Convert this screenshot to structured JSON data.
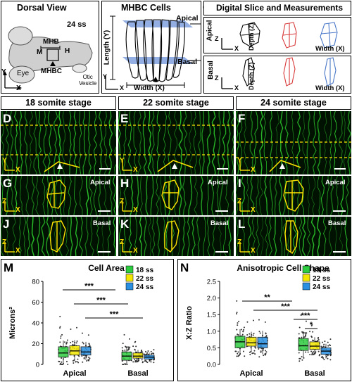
{
  "panel_letters": [
    "A",
    "B",
    "C",
    "D",
    "E",
    "F",
    "G",
    "H",
    "I",
    "J",
    "K",
    "L",
    "M",
    "N"
  ],
  "panelA": {
    "title": "Dorsal View",
    "stage": "24 ss",
    "labels": {
      "mhb": "MHB",
      "m": "M",
      "h": "H",
      "eye": "Eye",
      "mhbc": "MHBC",
      "otic": "Otic\nVesicle"
    },
    "axis_y": "Y",
    "axis_x": "X"
  },
  "panelB": {
    "title": "MHBC Cells",
    "apical": "Apical",
    "basal": "Basal",
    "length": "Length (Y)",
    "width": "Width (X)",
    "axis_y": "Y",
    "axis_x": "X"
  },
  "panelC": {
    "title": "Digital Slice and Measurements",
    "apical": "Apical",
    "basal": "Basal",
    "depth": "Depth (Z)",
    "width": "Width (X)",
    "axis_z": "Z",
    "axis_x": "X"
  },
  "stage_headers": [
    "18 somite stage",
    "22 somite stage",
    "24 somite stage"
  ],
  "micro_axes": {
    "y": "Y",
    "z": "Z",
    "x": "X"
  },
  "micro_tags": {
    "apical": "Apical",
    "basal": "Basal"
  },
  "colors": {
    "gfp": "#2dd12d",
    "yellow": "#ffe300",
    "s18": "#2ecc40",
    "s22": "#f2e600",
    "s24": "#2a8fe0",
    "apical_blue": "#4a78c8",
    "basal_red": "#d93a3a"
  },
  "chart_data": [
    {
      "type": "box",
      "title": "Cell Area",
      "ylabel": "Microns²",
      "ylim": [
        0,
        80
      ],
      "yticks": [
        0,
        20,
        40,
        60,
        80
      ],
      "categories": [
        "Apical",
        "Basal"
      ],
      "legend": [
        "18 ss",
        "22 ss",
        "24 ss"
      ],
      "legend_position": "top-right",
      "series": [
        {
          "name": "18 ss",
          "boxes": [
            {
              "q1": 7,
              "median": 11,
              "q3": 17
            },
            {
              "q1": 4,
              "median": 8,
              "q3": 12
            }
          ]
        },
        {
          "name": "22 ss",
          "boxes": [
            {
              "q1": 9,
              "median": 13,
              "q3": 18
            },
            {
              "q1": 6,
              "median": 8,
              "q3": 11
            }
          ]
        },
        {
          "name": "24 ss",
          "boxes": [
            {
              "q1": 9,
              "median": 12,
              "q3": 17
            },
            {
              "q1": 5,
              "median": 7,
              "q3": 9
            }
          ]
        }
      ],
      "significance": [
        "***",
        "***",
        "***"
      ]
    },
    {
      "type": "box",
      "title": "Anisotropic Cell Shape",
      "ylabel": "X:Z Ratio",
      "ylim": [
        0,
        2.5
      ],
      "yticks": [
        0.0,
        0.5,
        1.0,
        1.5,
        2.0,
        2.5
      ],
      "categories": [
        "Apical",
        "Basal"
      ],
      "legend": [
        "18 ss",
        "22 ss",
        "24 ss"
      ],
      "legend_position": "top-right",
      "series": [
        {
          "name": "18 ss",
          "boxes": [
            {
              "q1": 0.5,
              "median": 0.68,
              "q3": 0.85
            },
            {
              "q1": 0.42,
              "median": 0.56,
              "q3": 0.78
            }
          ]
        },
        {
          "name": "22 ss",
          "boxes": [
            {
              "q1": 0.55,
              "median": 0.65,
              "q3": 0.82
            },
            {
              "q1": 0.45,
              "median": 0.55,
              "q3": 0.68
            }
          ]
        },
        {
          "name": "24 ss",
          "boxes": [
            {
              "q1": 0.5,
              "median": 0.62,
              "q3": 0.82
            },
            {
              "q1": 0.3,
              "median": 0.4,
              "q3": 0.5
            }
          ]
        }
      ],
      "significance": [
        "**",
        "***",
        "***",
        "*"
      ]
    }
  ]
}
